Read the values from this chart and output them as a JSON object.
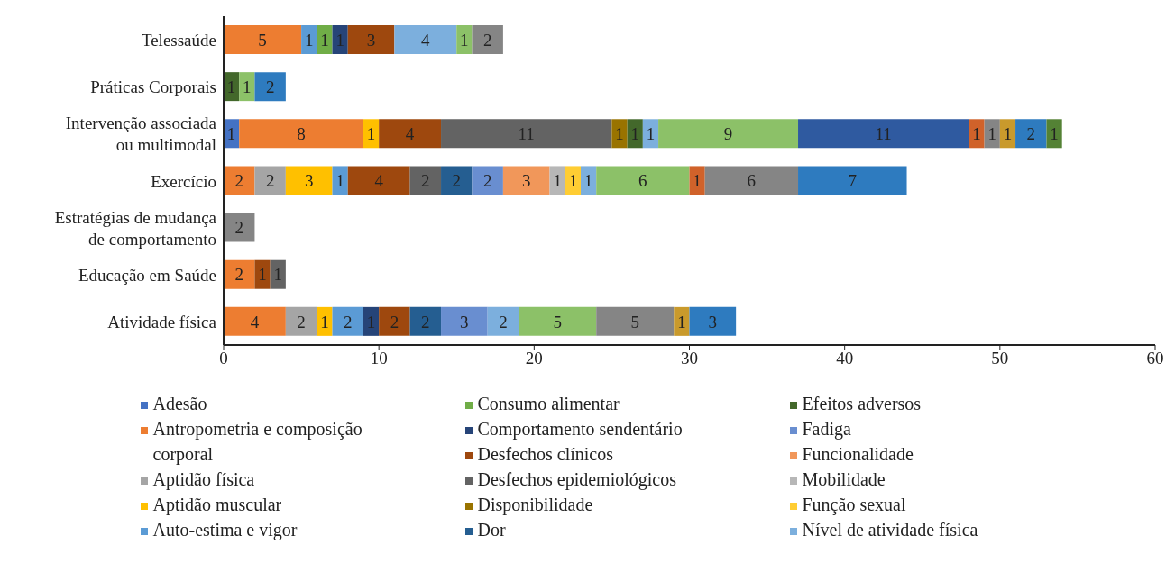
{
  "chart_data": {
    "type": "bar",
    "orientation": "horizontal",
    "stacked": true,
    "data_labels": true,
    "legend": "bottom",
    "categories": [
      "Telessaúde",
      "Práticas Corporais",
      "Intervenção associada ou multimodal",
      "Exercício",
      "Estratégias de mudança de comportamento",
      "Educação em Saúde",
      "Atividade física"
    ],
    "xlim": [
      0,
      60
    ],
    "xticks": [
      0,
      10,
      20,
      30,
      40,
      50,
      60
    ],
    "series": [
      {
        "name": "Adesão",
        "color": "#4472c4",
        "values": [
          null,
          null,
          1,
          null,
          null,
          null,
          null
        ]
      },
      {
        "name": "Antropometria e composição corporal",
        "color": "#ed7d31",
        "values": [
          5,
          null,
          8,
          2,
          null,
          2,
          4
        ]
      },
      {
        "name": "Aptidão física",
        "color": "#a5a5a5",
        "values": [
          null,
          null,
          null,
          2,
          null,
          null,
          2
        ]
      },
      {
        "name": "Aptidão muscular",
        "color": "#ffc000",
        "values": [
          null,
          null,
          1,
          3,
          null,
          null,
          1
        ]
      },
      {
        "name": "Auto-estima e vigor",
        "color": "#5b9bd5",
        "values": [
          1,
          null,
          null,
          1,
          null,
          null,
          2
        ]
      },
      {
        "name": "Consumo alimentar",
        "color": "#70ad47",
        "values": [
          1,
          null,
          null,
          null,
          null,
          null,
          null
        ]
      },
      {
        "name": "Comportamento sendentário",
        "color": "#264478",
        "values": [
          1,
          null,
          null,
          null,
          null,
          null,
          1
        ]
      },
      {
        "name": "Desfechos clínicos",
        "color": "#9e480e",
        "values": [
          3,
          null,
          4,
          4,
          null,
          1,
          2
        ]
      },
      {
        "name": "Desfechos epidemiológicos",
        "color": "#636363",
        "values": [
          null,
          null,
          11,
          2,
          null,
          1,
          null
        ]
      },
      {
        "name": "Disponibilidade",
        "color": "#997300",
        "values": [
          null,
          null,
          1,
          null,
          null,
          null,
          null
        ]
      },
      {
        "name": "Dor",
        "color": "#255e91",
        "values": [
          null,
          null,
          null,
          2,
          null,
          null,
          2
        ]
      },
      {
        "name": "Efeitos adversos",
        "color": "#43682b",
        "values": [
          null,
          1,
          1,
          null,
          null,
          null,
          null
        ]
      },
      {
        "name": "Fadiga",
        "color": "#698ed0",
        "values": [
          null,
          null,
          null,
          2,
          null,
          null,
          3
        ]
      },
      {
        "name": "Funcionalidade",
        "color": "#f1975a",
        "values": [
          null,
          null,
          null,
          3,
          null,
          null,
          null
        ]
      },
      {
        "name": "Mobilidade",
        "color": "#b7b7b7",
        "values": [
          null,
          null,
          null,
          1,
          null,
          null,
          null
        ]
      },
      {
        "name": "Função sexual",
        "color": "#ffcd33",
        "values": [
          null,
          null,
          null,
          1,
          null,
          null,
          null
        ]
      },
      {
        "name": "Nível de atividade física",
        "color": "#7cafdd",
        "values": [
          4,
          null,
          1,
          1,
          null,
          null,
          2
        ]
      },
      {
        "color": "#8cc168",
        "values": [
          1,
          1,
          9,
          6,
          null,
          null,
          5
        ]
      },
      {
        "color": "#2f5aa0",
        "values": [
          null,
          null,
          11,
          null,
          null,
          null,
          null
        ]
      },
      {
        "color": "#d0622a",
        "values": [
          null,
          null,
          1,
          1,
          null,
          null,
          null
        ]
      },
      {
        "color": "#858585",
        "values": [
          2,
          null,
          1,
          6,
          2,
          null,
          5
        ]
      },
      {
        "color": "#c99a2c",
        "values": [
          null,
          null,
          1,
          null,
          null,
          null,
          1
        ]
      },
      {
        "color": "#2e7bbf",
        "values": [
          null,
          2,
          2,
          7,
          null,
          null,
          3
        ]
      },
      {
        "color": "#548235",
        "values": [
          null,
          null,
          1,
          null,
          null,
          null,
          null
        ]
      }
    ]
  }
}
